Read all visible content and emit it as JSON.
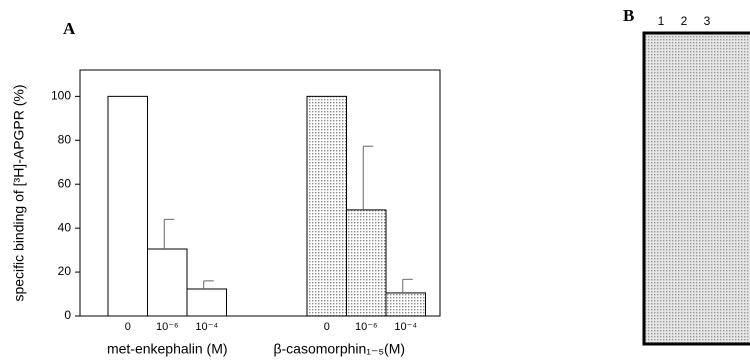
{
  "chart_data": {
    "type": "bar",
    "panel_label": "A",
    "ylabel": "specific binding of [³H]-APGPR (%)",
    "ylim": [
      0,
      112
    ],
    "yticks": [
      0,
      20,
      40,
      60,
      80,
      100
    ],
    "groups": [
      {
        "label": "met-enkephalin (M)",
        "color": "#ffffff",
        "categories": [
          "0",
          "10⁻⁶",
          "10⁻⁴"
        ],
        "values": [
          100,
          30.5,
          12.3
        ],
        "errors": [
          null,
          13.5,
          3.7
        ]
      },
      {
        "label": "β-casomorphin₁₋₅(M)",
        "color": "#8a8a8a",
        "categories": [
          "0",
          "10⁻⁶",
          "10⁻⁴"
        ],
        "values": [
          100,
          48.3,
          10.5
        ],
        "errors": [
          null,
          29,
          6.2
        ]
      }
    ]
  },
  "panel_b": {
    "label": "B",
    "lanes": [
      "1",
      "2",
      "3"
    ]
  }
}
